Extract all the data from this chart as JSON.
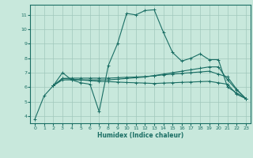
{
  "xlabel": "Humidex (Indice chaleur)",
  "xlim": [
    -0.5,
    23.5
  ],
  "ylim": [
    3.5,
    11.7
  ],
  "yticks": [
    4,
    5,
    6,
    7,
    8,
    9,
    10,
    11
  ],
  "xticks": [
    0,
    1,
    2,
    3,
    4,
    5,
    6,
    7,
    8,
    9,
    10,
    11,
    12,
    13,
    14,
    15,
    16,
    17,
    18,
    19,
    20,
    21,
    22,
    23
  ],
  "bg_color": "#c8e8dc",
  "grid_color": "#a0c8bc",
  "line_color": "#1a6e64",
  "curves": [
    {
      "x": [
        0,
        1,
        2,
        3,
        4,
        5,
        6,
        7,
        8,
        9,
        10,
        11,
        12,
        13,
        14,
        15,
        16,
        17,
        18,
        19,
        20,
        21,
        22,
        23
      ],
      "y": [
        3.8,
        5.4,
        6.1,
        7.0,
        6.5,
        6.3,
        6.2,
        4.3,
        7.5,
        9.0,
        11.1,
        11.0,
        11.3,
        11.35,
        9.8,
        8.4,
        7.8,
        8.0,
        8.3,
        7.9,
        7.9,
        6.0,
        5.6,
        5.2
      ]
    },
    {
      "x": [
        2,
        3,
        4,
        5,
        6,
        7,
        8,
        9,
        10,
        11,
        12,
        13,
        14,
        15,
        16,
        17,
        18,
        19,
        20,
        21,
        22,
        23
      ],
      "y": [
        6.1,
        6.5,
        6.5,
        6.5,
        6.5,
        6.5,
        6.5,
        6.55,
        6.6,
        6.65,
        6.7,
        6.8,
        6.9,
        7.0,
        7.1,
        7.2,
        7.3,
        7.4,
        7.4,
        6.5,
        5.8,
        5.2
      ]
    },
    {
      "x": [
        2,
        3,
        4,
        5,
        6,
        7,
        8,
        9,
        10,
        11,
        12,
        13,
        14,
        15,
        16,
        17,
        18,
        19,
        20,
        21,
        22,
        23
      ],
      "y": [
        6.1,
        6.6,
        6.62,
        6.62,
        6.62,
        6.62,
        6.62,
        6.65,
        6.68,
        6.7,
        6.73,
        6.78,
        6.85,
        6.9,
        6.95,
        7.0,
        7.05,
        7.1,
        6.9,
        6.7,
        5.85,
        5.2
      ]
    },
    {
      "x": [
        2,
        3,
        4,
        5,
        6,
        7,
        8,
        9,
        10,
        11,
        12,
        13,
        14,
        15,
        16,
        17,
        18,
        19,
        20,
        21,
        22,
        23
      ],
      "y": [
        6.1,
        6.6,
        6.55,
        6.5,
        6.45,
        6.4,
        6.38,
        6.35,
        6.32,
        6.3,
        6.28,
        6.25,
        6.28,
        6.3,
        6.33,
        6.35,
        6.38,
        6.4,
        6.3,
        6.2,
        5.5,
        5.2
      ]
    }
  ]
}
